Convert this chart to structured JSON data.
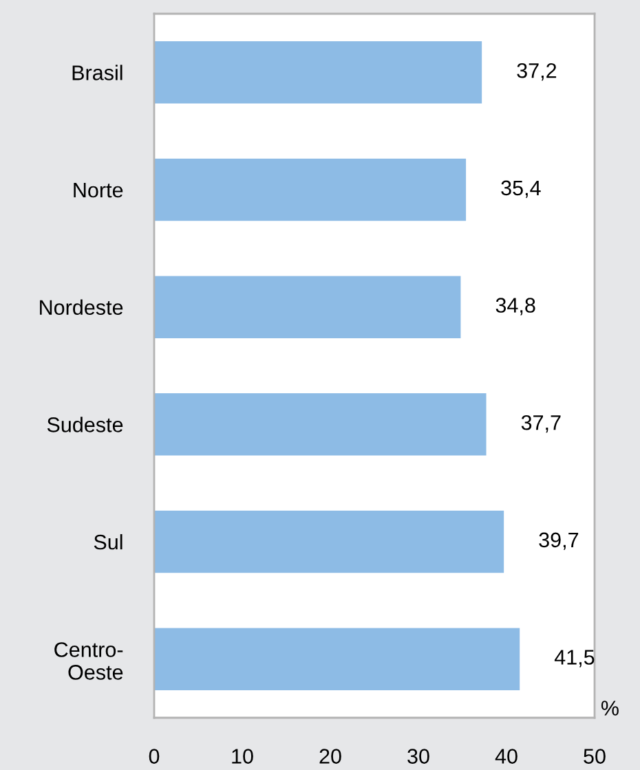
{
  "chart_data": {
    "type": "bar",
    "orientation": "horizontal",
    "xlabel": "%",
    "categories": [
      "Brasil",
      "Norte",
      "Nordeste",
      "Sudeste",
      "Sul",
      "Centro-\nOeste"
    ],
    "values": [
      37.2,
      35.4,
      34.8,
      37.7,
      39.7,
      41.5
    ],
    "value_labels": [
      "37,2",
      "35,4",
      "34,8",
      "37,7",
      "39,7",
      "41,5"
    ],
    "color": "#8dbbe5",
    "xlim": [
      0,
      50
    ],
    "xticks": [
      0,
      10,
      20,
      30,
      40,
      50
    ],
    "grid": false,
    "legend": false
  }
}
